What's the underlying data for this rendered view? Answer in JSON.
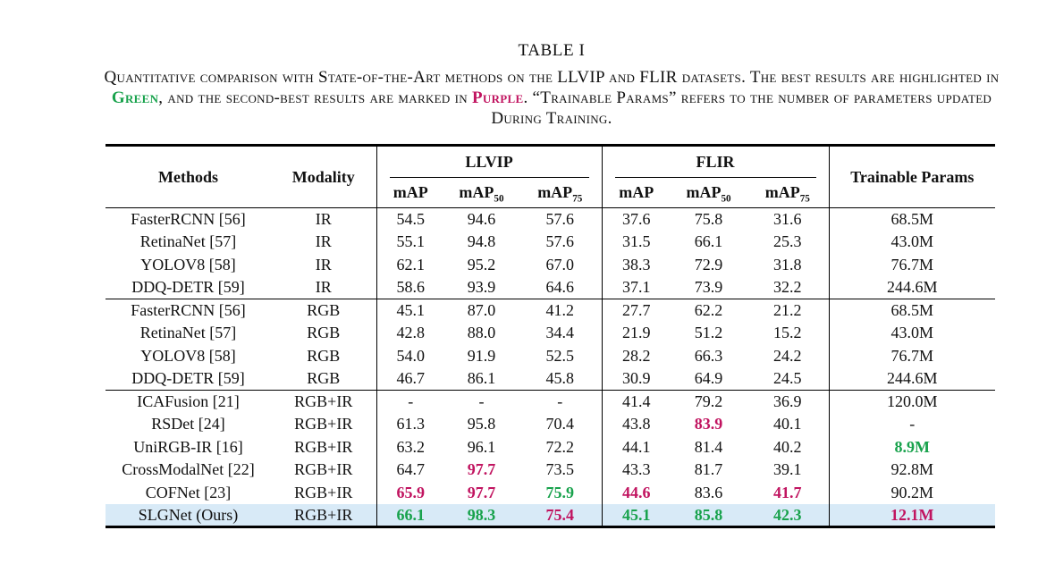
{
  "accent": {
    "best_color": "#18a24c",
    "second_color": "#c11460",
    "highlight_row_color": "#d8eaf7"
  },
  "title": "TABLE I",
  "caption": {
    "line1": "Quantitative comparison with State-of-the-Art methods on the LLVIP and FLIR datasets. The best results are highlighted in",
    "line2_green": "Green",
    "line2_mid": ", and the second-best results are marked in ",
    "line2_purple": "Purple",
    "line2_rest": ". “Trainable Params” refers to the number of parameters updated",
    "line3": "During Training."
  },
  "table": {
    "col_methods": "Methods",
    "col_modality": "Modality",
    "group_llvip": "LLVIP",
    "group_flir": "FLIR",
    "col_params": "Trainable Params",
    "subcols": [
      {
        "base": "mAP",
        "sub": ""
      },
      {
        "base": "mAP",
        "sub": "50"
      },
      {
        "base": "mAP",
        "sub": "75"
      }
    ],
    "groups": [
      {
        "rows": [
          {
            "method": "FasterRCNN [56]",
            "modality": "IR",
            "cells": [
              [
                "54.5",
                "n"
              ],
              [
                "94.6",
                "n"
              ],
              [
                "57.6",
                "n"
              ],
              [
                "37.6",
                "n"
              ],
              [
                "75.8",
                "n"
              ],
              [
                "31.6",
                "n"
              ],
              [
                "68.5M",
                "n"
              ]
            ],
            "highlight": false
          },
          {
            "method": "RetinaNet [57]",
            "modality": "IR",
            "cells": [
              [
                "55.1",
                "n"
              ],
              [
                "94.8",
                "n"
              ],
              [
                "57.6",
                "n"
              ],
              [
                "31.5",
                "n"
              ],
              [
                "66.1",
                "n"
              ],
              [
                "25.3",
                "n"
              ],
              [
                "43.0M",
                "n"
              ]
            ],
            "highlight": false
          },
          {
            "method": "YOLOV8 [58]",
            "modality": "IR",
            "cells": [
              [
                "62.1",
                "n"
              ],
              [
                "95.2",
                "n"
              ],
              [
                "67.0",
                "n"
              ],
              [
                "38.3",
                "n"
              ],
              [
                "72.9",
                "n"
              ],
              [
                "31.8",
                "n"
              ],
              [
                "76.7M",
                "n"
              ]
            ],
            "highlight": false
          },
          {
            "method": "DDQ-DETR [59]",
            "modality": "IR",
            "cells": [
              [
                "58.6",
                "n"
              ],
              [
                "93.9",
                "n"
              ],
              [
                "64.6",
                "n"
              ],
              [
                "37.1",
                "n"
              ],
              [
                "73.9",
                "n"
              ],
              [
                "32.2",
                "n"
              ],
              [
                "244.6M",
                "n"
              ]
            ],
            "highlight": false
          }
        ]
      },
      {
        "rows": [
          {
            "method": "FasterRCNN [56]",
            "modality": "RGB",
            "cells": [
              [
                "45.1",
                "n"
              ],
              [
                "87.0",
                "n"
              ],
              [
                "41.2",
                "n"
              ],
              [
                "27.7",
                "n"
              ],
              [
                "62.2",
                "n"
              ],
              [
                "21.2",
                "n"
              ],
              [
                "68.5M",
                "n"
              ]
            ],
            "highlight": false
          },
          {
            "method": "RetinaNet [57]",
            "modality": "RGB",
            "cells": [
              [
                "42.8",
                "n"
              ],
              [
                "88.0",
                "n"
              ],
              [
                "34.4",
                "n"
              ],
              [
                "21.9",
                "n"
              ],
              [
                "51.2",
                "n"
              ],
              [
                "15.2",
                "n"
              ],
              [
                "43.0M",
                "n"
              ]
            ],
            "highlight": false
          },
          {
            "method": "YOLOV8 [58]",
            "modality": "RGB",
            "cells": [
              [
                "54.0",
                "n"
              ],
              [
                "91.9",
                "n"
              ],
              [
                "52.5",
                "n"
              ],
              [
                "28.2",
                "n"
              ],
              [
                "66.3",
                "n"
              ],
              [
                "24.2",
                "n"
              ],
              [
                "76.7M",
                "n"
              ]
            ],
            "highlight": false
          },
          {
            "method": "DDQ-DETR [59]",
            "modality": "RGB",
            "cells": [
              [
                "46.7",
                "n"
              ],
              [
                "86.1",
                "n"
              ],
              [
                "45.8",
                "n"
              ],
              [
                "30.9",
                "n"
              ],
              [
                "64.9",
                "n"
              ],
              [
                "24.5",
                "n"
              ],
              [
                "244.6M",
                "n"
              ]
            ],
            "highlight": false
          }
        ]
      },
      {
        "rows": [
          {
            "method": "ICAFusion [21]",
            "modality": "RGB+IR",
            "cells": [
              [
                "-",
                "n"
              ],
              [
                "-",
                "n"
              ],
              [
                "-",
                "n"
              ],
              [
                "41.4",
                "n"
              ],
              [
                "79.2",
                "n"
              ],
              [
                "36.9",
                "n"
              ],
              [
                "120.0M",
                "n"
              ]
            ],
            "highlight": false
          },
          {
            "method": "RSDet [24]",
            "modality": "RGB+IR",
            "cells": [
              [
                "61.3",
                "n"
              ],
              [
                "95.8",
                "n"
              ],
              [
                "70.4",
                "n"
              ],
              [
                "43.8",
                "n"
              ],
              [
                "83.9",
                "second"
              ],
              [
                "40.1",
                "n"
              ],
              [
                "-",
                "n"
              ]
            ],
            "highlight": false
          },
          {
            "method": "UniRGB-IR [16]",
            "modality": "RGB+IR",
            "cells": [
              [
                "63.2",
                "n"
              ],
              [
                "96.1",
                "n"
              ],
              [
                "72.2",
                "n"
              ],
              [
                "44.1",
                "n"
              ],
              [
                "81.4",
                "n"
              ],
              [
                "40.2",
                "n"
              ],
              [
                "8.9M",
                "best"
              ]
            ],
            "highlight": false
          },
          {
            "method": "CrossModalNet [22]",
            "modality": "RGB+IR",
            "cells": [
              [
                "64.7",
                "n"
              ],
              [
                "97.7",
                "second"
              ],
              [
                "73.5",
                "n"
              ],
              [
                "43.3",
                "n"
              ],
              [
                "81.7",
                "n"
              ],
              [
                "39.1",
                "n"
              ],
              [
                "92.8M",
                "n"
              ]
            ],
            "highlight": false
          },
          {
            "method": "COFNet [23]",
            "modality": "RGB+IR",
            "cells": [
              [
                "65.9",
                "second"
              ],
              [
                "97.7",
                "second"
              ],
              [
                "75.9",
                "best"
              ],
              [
                "44.6",
                "second"
              ],
              [
                "83.6",
                "n"
              ],
              [
                "41.7",
                "second"
              ],
              [
                "90.2M",
                "n"
              ]
            ],
            "highlight": false
          },
          {
            "method": "SLGNet (Ours)",
            "modality": "RGB+IR",
            "cells": [
              [
                "66.1",
                "best"
              ],
              [
                "98.3",
                "best"
              ],
              [
                "75.4",
                "second"
              ],
              [
                "45.1",
                "best"
              ],
              [
                "85.8",
                "best"
              ],
              [
                "42.3",
                "best"
              ],
              [
                "12.1M",
                "second"
              ]
            ],
            "highlight": true
          }
        ]
      }
    ]
  }
}
